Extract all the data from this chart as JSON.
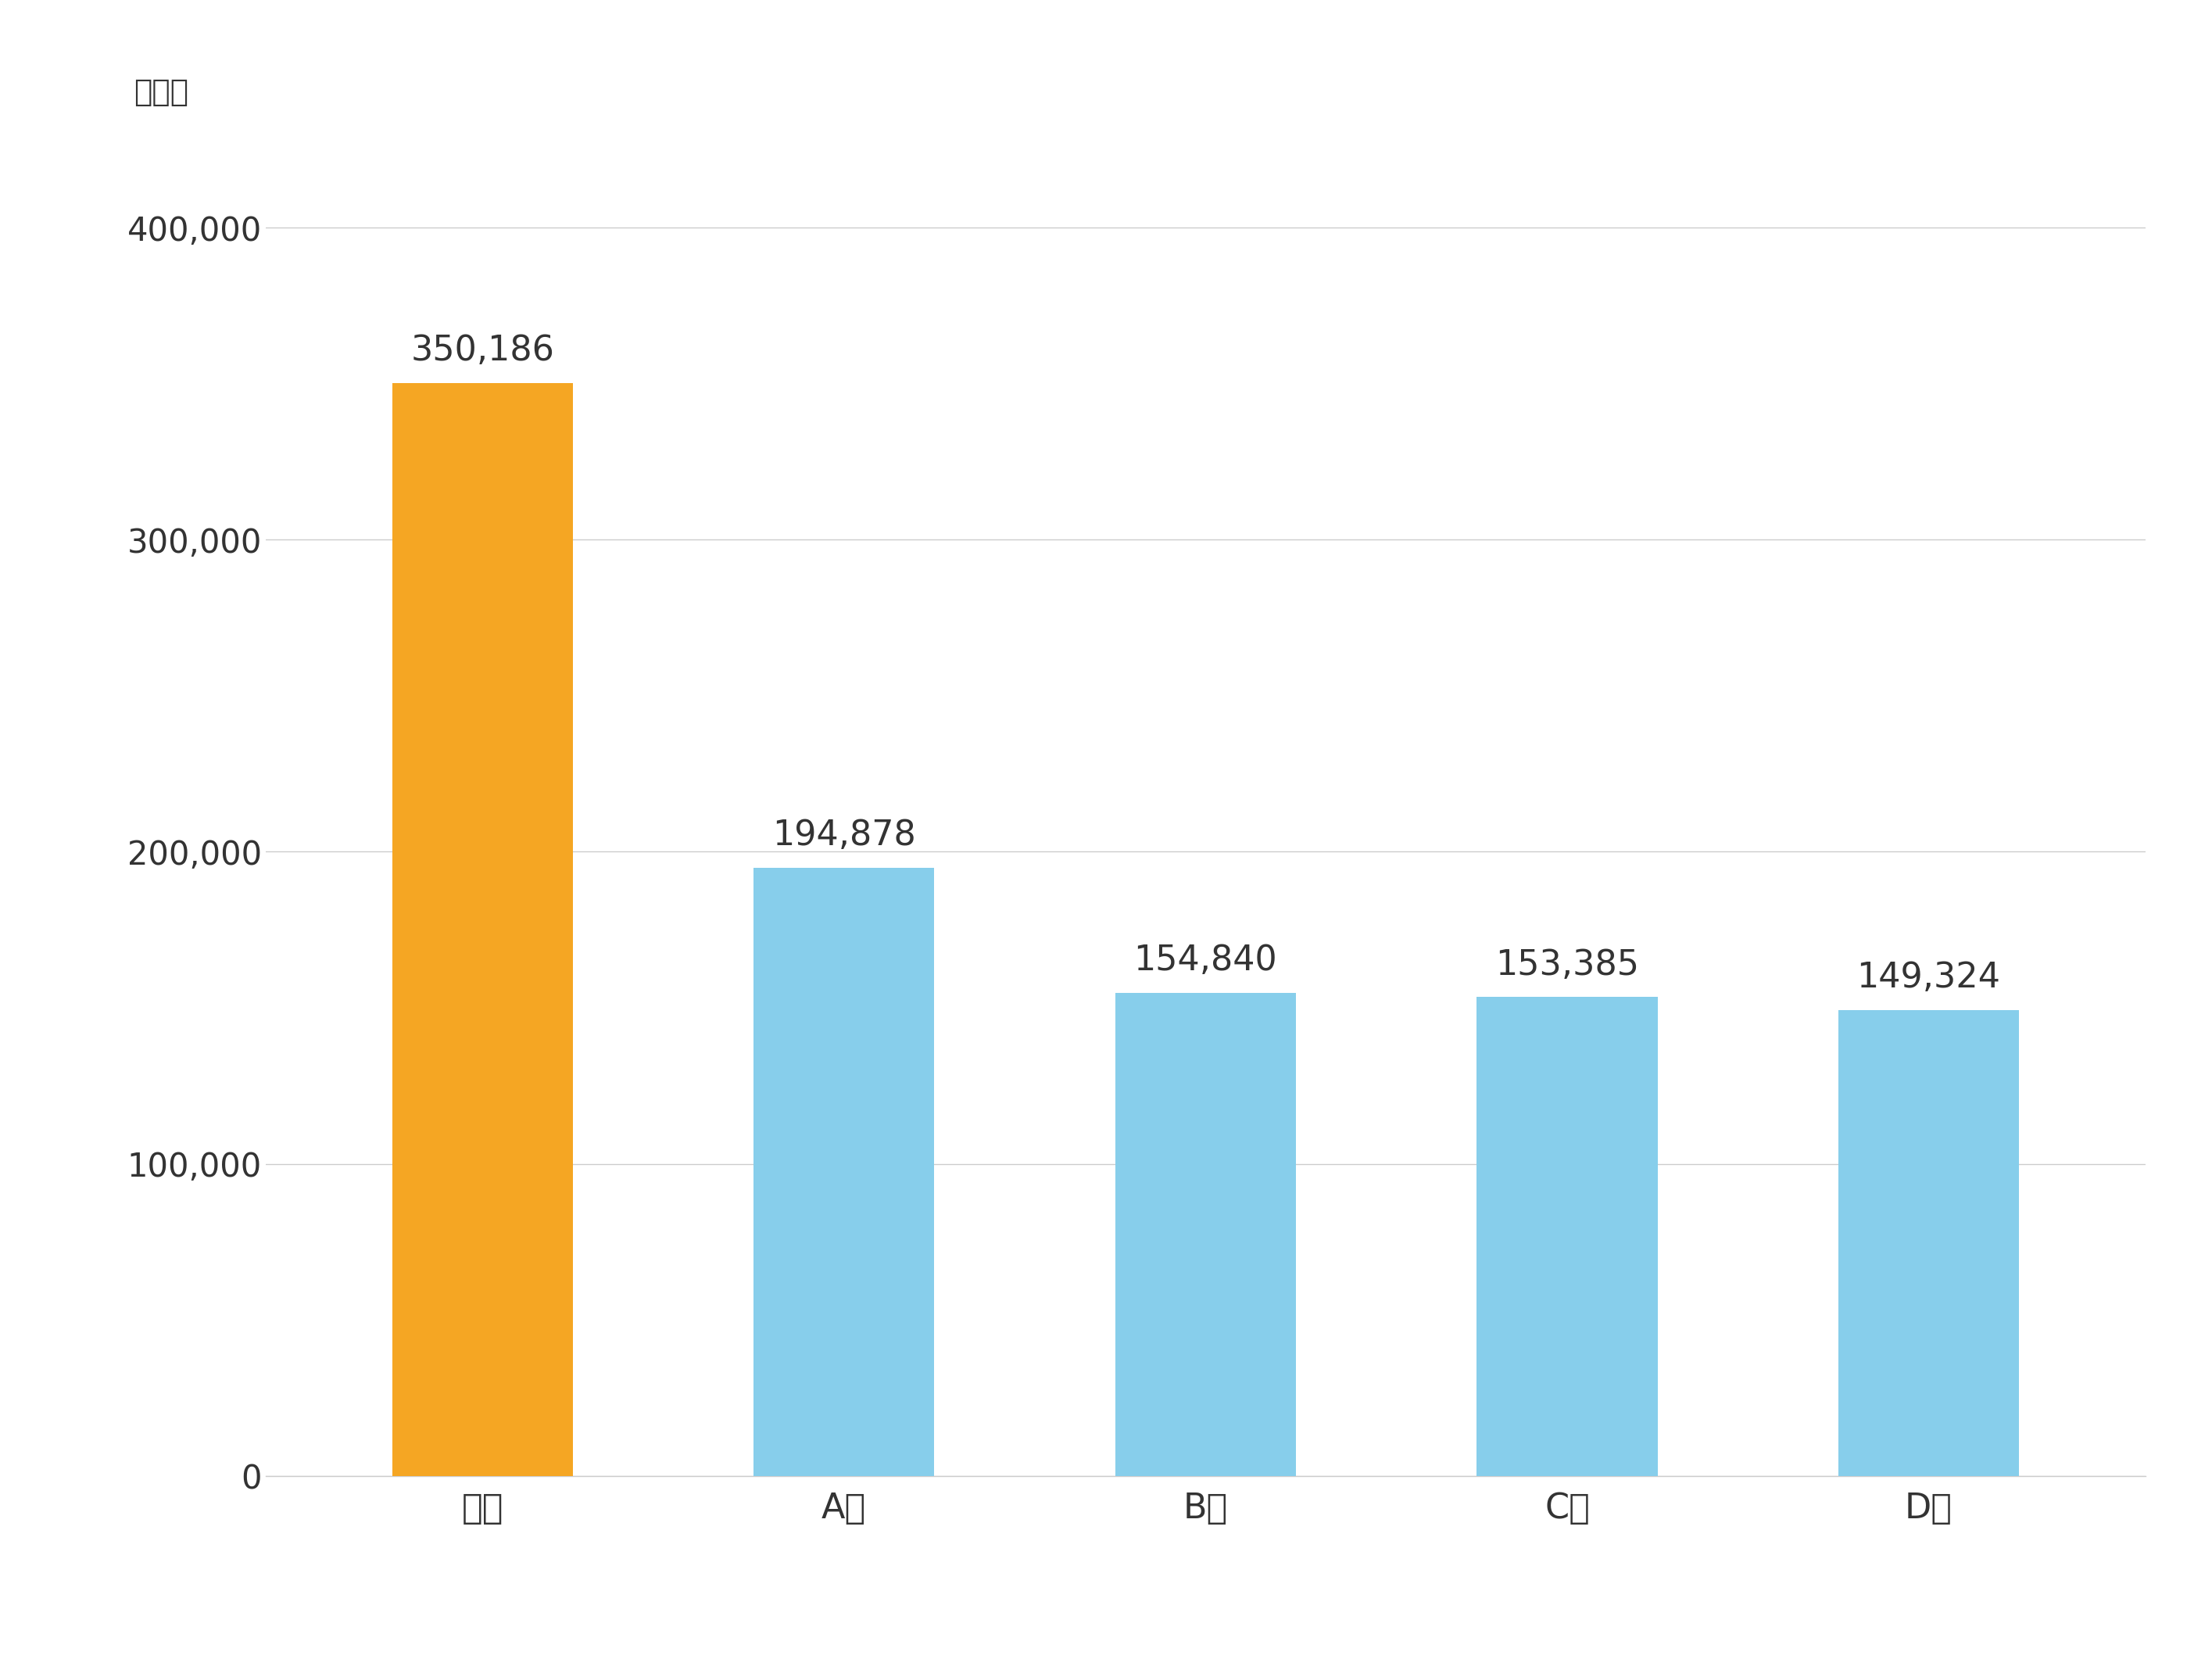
{
  "categories": [
    "大京",
    "A社",
    "B社",
    "C社",
    "D社"
  ],
  "values": [
    350186,
    194878,
    154840,
    153385,
    149324
  ],
  "bar_colors": [
    "#F5A623",
    "#87CEEB",
    "#87CEEB",
    "#87CEEB",
    "#87CEEB"
  ],
  "ylabel_text": "（戸）",
  "ylim": [
    0,
    430000
  ],
  "yticks": [
    0,
    100000,
    200000,
    300000,
    400000
  ],
  "ytick_labels": [
    "0",
    "100,000",
    "200,000",
    "300,000",
    "400,000"
  ],
  "value_labels": [
    "350,186",
    "194,878",
    "154,840",
    "153,385",
    "149,324"
  ],
  "background_color": "#ffffff",
  "grid_color": "#cccccc",
  "bar_label_fontsize": 32,
  "axis_label_fontsize": 32,
  "ylabel_fontsize": 28,
  "tick_label_fontsize": 30
}
